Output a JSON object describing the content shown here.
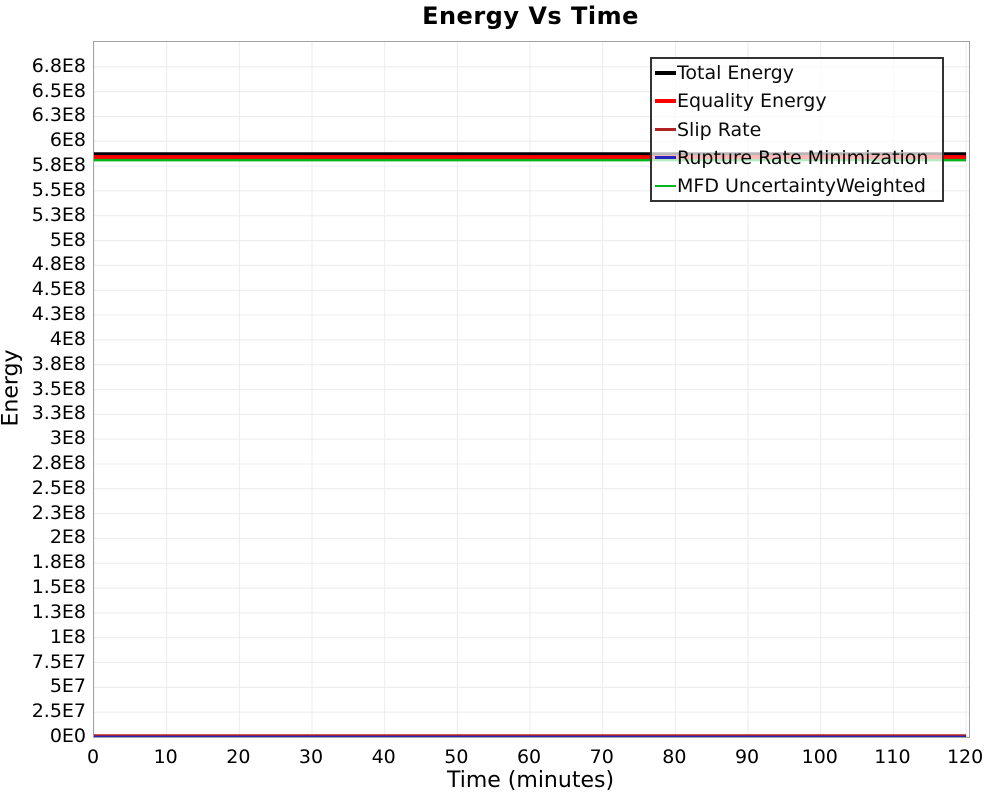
{
  "title": "Energy Vs Time",
  "axes": {
    "x_label": "Time (minutes)",
    "y_label": "Energy"
  },
  "style": {
    "background": "#ffffff",
    "grid_color": "#ececec",
    "plot_border_color": "#a3a3a3",
    "legend_border_color": "#333333",
    "text_color": "#000000"
  },
  "legend": {
    "items": [
      {
        "label": "Total Energy",
        "color": "#000000",
        "weight": 4
      },
      {
        "label": "Equality Energy",
        "color": "#ff0000",
        "weight": 4
      },
      {
        "label": "Slip Rate",
        "color": "#b22222",
        "weight": 2.5
      },
      {
        "label": "Rupture Rate Minimization",
        "color": "#2525bb",
        "weight": 2.5
      },
      {
        "label": "MFD UncertaintyWeighted",
        "color": "#00b41e",
        "weight": 2.5
      }
    ]
  },
  "chart_data": {
    "type": "line",
    "title": "Energy Vs Time",
    "xlabel": "Time (minutes)",
    "ylabel": "Energy",
    "x_range": [
      0,
      120.4
    ],
    "y_range": [
      0,
      700000000
    ],
    "grid": true,
    "legend_position": "top-right-inside",
    "x": [
      0,
      120
    ],
    "series": [
      {
        "name": "Total Energy",
        "color": "#000000",
        "width": 4,
        "values": [
          587000000,
          587000000
        ]
      },
      {
        "name": "Equality Energy",
        "color": "#ff0000",
        "width": 4,
        "values": [
          584000000,
          584000000
        ]
      },
      {
        "name": "Slip Rate",
        "color": "#b22222",
        "width": 2.5,
        "values": [
          1500000,
          1500000
        ]
      },
      {
        "name": "Rupture Rate Minimization",
        "color": "#2525bb",
        "width": 2.5,
        "values": [
          0,
          0
        ]
      },
      {
        "name": "MFD UncertaintyWeighted",
        "color": "#00b41e",
        "width": 2.5,
        "values": [
          581000000,
          581000000
        ]
      }
    ],
    "x_ticks": [
      {
        "value": 0,
        "label": "0"
      },
      {
        "value": 10,
        "label": "10"
      },
      {
        "value": 20,
        "label": "20"
      },
      {
        "value": 30,
        "label": "30"
      },
      {
        "value": 40,
        "label": "40"
      },
      {
        "value": 50,
        "label": "50"
      },
      {
        "value": 60,
        "label": "60"
      },
      {
        "value": 70,
        "label": "70"
      },
      {
        "value": 80,
        "label": "80"
      },
      {
        "value": 90,
        "label": "90"
      },
      {
        "value": 100,
        "label": "100"
      },
      {
        "value": 110,
        "label": "110"
      },
      {
        "value": 120,
        "label": "120"
      }
    ],
    "y_ticks": [
      {
        "value": 0,
        "label": "0E0"
      },
      {
        "value": 25000000,
        "label": "2.5E7"
      },
      {
        "value": 50000000,
        "label": "5E7"
      },
      {
        "value": 75000000,
        "label": "7.5E7"
      },
      {
        "value": 100000000,
        "label": "1E8"
      },
      {
        "value": 125000000,
        "label": "1.3E8"
      },
      {
        "value": 150000000,
        "label": "1.5E8"
      },
      {
        "value": 175000000,
        "label": "1.8E8"
      },
      {
        "value": 200000000,
        "label": "2E8"
      },
      {
        "value": 225000000,
        "label": "2.3E8"
      },
      {
        "value": 250000000,
        "label": "2.5E8"
      },
      {
        "value": 275000000,
        "label": "2.8E8"
      },
      {
        "value": 300000000,
        "label": "3E8"
      },
      {
        "value": 325000000,
        "label": "3.3E8"
      },
      {
        "value": 350000000,
        "label": "3.5E8"
      },
      {
        "value": 375000000,
        "label": "3.8E8"
      },
      {
        "value": 400000000,
        "label": "4E8"
      },
      {
        "value": 425000000,
        "label": "4.3E8"
      },
      {
        "value": 450000000,
        "label": "4.5E8"
      },
      {
        "value": 475000000,
        "label": "4.8E8"
      },
      {
        "value": 500000000,
        "label": "5E8"
      },
      {
        "value": 525000000,
        "label": "5.3E8"
      },
      {
        "value": 550000000,
        "label": "5.5E8"
      },
      {
        "value": 575000000,
        "label": "5.8E8"
      },
      {
        "value": 600000000,
        "label": "6E8"
      },
      {
        "value": 625000000,
        "label": "6.3E8"
      },
      {
        "value": 650000000,
        "label": "6.5E8"
      },
      {
        "value": 675000000,
        "label": "6.8E8"
      }
    ]
  }
}
